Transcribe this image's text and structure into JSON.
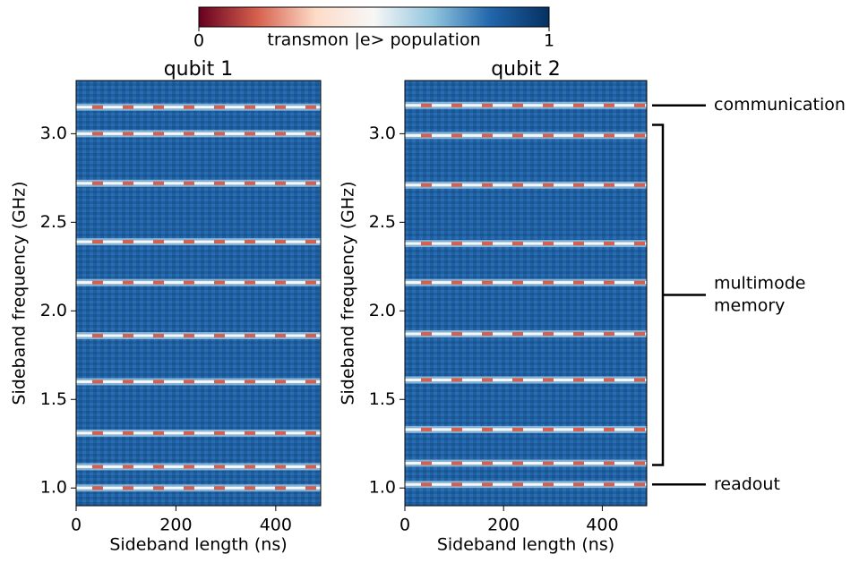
{
  "colorbar": {
    "label": "transmon |e> population",
    "lim": [
      0,
      1
    ],
    "ticks": [
      0,
      1
    ],
    "colormap": [
      "#67001f",
      "#d6604d",
      "#fddbc7",
      "#f7f7f7",
      "#92c5de",
      "#2166ac",
      "#053061"
    ]
  },
  "chart_data": [
    {
      "type": "heatmap",
      "title": "qubit 1",
      "xlabel": "Sideband length (ns)",
      "ylabel": "Sideband frequency (GHz)",
      "xlim": [
        0,
        490
      ],
      "ylim": [
        0.9,
        3.3
      ],
      "xticks": [
        0,
        200,
        400
      ],
      "yticks": [
        {
          "value": 1,
          "label": "1.0"
        },
        1.5,
        {
          "value": 2,
          "label": "2.0"
        },
        2.5,
        {
          "value": 3,
          "label": "3.0"
        }
      ],
      "resonances": [
        3.15,
        3.0,
        2.72,
        2.39,
        2.16,
        1.86,
        1.6,
        1.31,
        1.12,
        1.0
      ]
    },
    {
      "type": "heatmap",
      "title": "qubit 2",
      "xlabel": "Sideband length (ns)",
      "ylabel": "Sideband frequency (GHz)",
      "xlim": [
        0,
        490
      ],
      "ylim": [
        0.9,
        3.3
      ],
      "xticks": [
        0,
        200,
        400
      ],
      "yticks": [
        {
          "value": 1,
          "label": "1.0"
        },
        1.5,
        {
          "value": 2,
          "label": "2.0"
        },
        2.5,
        {
          "value": 3,
          "label": "3.0"
        }
      ],
      "resonances": [
        3.16,
        2.99,
        2.71,
        2.38,
        2.16,
        1.87,
        1.61,
        1.33,
        1.14,
        1.02
      ],
      "annotations": [
        {
          "lines": [
            "communication"
          ],
          "y": 3.16
        },
        {
          "lines": [
            "multimode",
            "memory"
          ],
          "range": [
            1.13,
            3.05
          ]
        },
        {
          "lines": [
            "readout"
          ],
          "y": 1.02
        }
      ]
    }
  ]
}
